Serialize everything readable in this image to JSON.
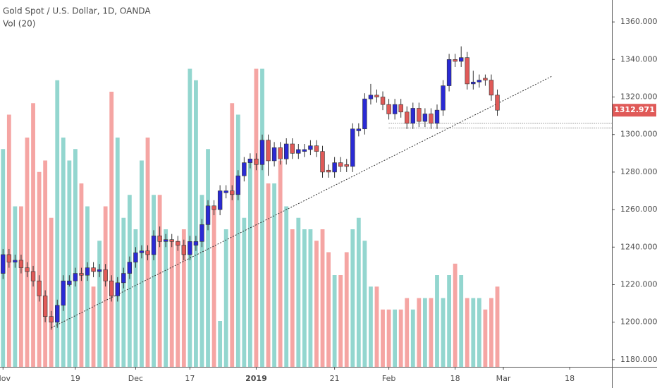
{
  "chart_data": {
    "type": "candlestick",
    "title": "Gold Spot / U.S. Dollar, 1D, OANDA",
    "subtitle": "Vol (20)",
    "up_color": "#2a2ad4",
    "down_color": "#e05a58",
    "volume_up_color": "#93d6cf",
    "volume_down_color": "#f5a5a3",
    "open": [
      1226,
      1236,
      1232,
      1233,
      1229,
      1227,
      1222,
      1214,
      1203,
      1200,
      1209,
      1220,
      1222,
      1226,
      1225,
      1229,
      1227,
      1228,
      1222,
      1214,
      1221,
      1226,
      1232,
      1237,
      1238,
      1236,
      1246,
      1243,
      1244,
      1243,
      1241,
      1236,
      1241,
      1243,
      1252,
      1262,
      1260,
      1269,
      1270,
      1268,
      1278,
      1285,
      1287,
      1284,
      1297,
      1286,
      1293,
      1287,
      1295,
      1290,
      1291,
      1292,
      1294,
      1291,
      1281,
      1280,
      1285,
      1284,
      1283,
      1302,
      1303,
      1319,
      1321,
      1320,
      1316,
      1311,
      1316,
      1312,
      1306,
      1314,
      1307,
      1311,
      1306,
      1313,
      1326,
      1340,
      1339,
      1341,
      1327,
      1328,
      1330,
      1329,
      1321
    ],
    "high": [
      1239,
      1239,
      1236,
      1236,
      1232,
      1230,
      1225,
      1217,
      1206,
      1212,
      1225,
      1225,
      1229,
      1229,
      1232,
      1232,
      1231,
      1231,
      1225,
      1224,
      1229,
      1235,
      1240,
      1241,
      1241,
      1249,
      1251,
      1247,
      1247,
      1246,
      1244,
      1246,
      1246,
      1255,
      1265,
      1265,
      1273,
      1273,
      1273,
      1281,
      1288,
      1290,
      1290,
      1300,
      1300,
      1296,
      1296,
      1298,
      1298,
      1295,
      1295,
      1297,
      1297,
      1294,
      1284,
      1288,
      1288,
      1287,
      1306,
      1306,
      1322,
      1327,
      1324,
      1323,
      1319,
      1319,
      1319,
      1315,
      1317,
      1317,
      1314,
      1314,
      1316,
      1329,
      1343,
      1343,
      1347,
      1344,
      1334,
      1332,
      1332,
      1332,
      1324
    ],
    "low": [
      1223,
      1229,
      1229,
      1226,
      1224,
      1219,
      1211,
      1200,
      1196,
      1197,
      1206,
      1219,
      1219,
      1222,
      1222,
      1224,
      1224,
      1219,
      1211,
      1211,
      1218,
      1223,
      1229,
      1234,
      1233,
      1233,
      1240,
      1240,
      1240,
      1238,
      1233,
      1233,
      1238,
      1240,
      1249,
      1257,
      1257,
      1266,
      1265,
      1265,
      1275,
      1282,
      1281,
      1281,
      1278,
      1283,
      1284,
      1284,
      1287,
      1287,
      1288,
      1289,
      1288,
      1277,
      1277,
      1277,
      1280,
      1280,
      1280,
      1299,
      1300,
      1316,
      1317,
      1313,
      1308,
      1308,
      1309,
      1303,
      1303,
      1304,
      1304,
      1303,
      1303,
      1310,
      1323,
      1336,
      1336,
      1324,
      1324,
      1325,
      1326,
      1318,
      1310
    ],
    "close": [
      1236,
      1232,
      1233,
      1229,
      1227,
      1222,
      1214,
      1203,
      1200,
      1209,
      1222,
      1222,
      1226,
      1225,
      1229,
      1227,
      1228,
      1222,
      1214,
      1221,
      1226,
      1232,
      1237,
      1238,
      1236,
      1246,
      1243,
      1244,
      1243,
      1241,
      1236,
      1243,
      1243,
      1252,
      1262,
      1260,
      1270,
      1270,
      1268,
      1278,
      1285,
      1287,
      1284,
      1297,
      1286,
      1293,
      1287,
      1295,
      1290,
      1292,
      1292,
      1294,
      1291,
      1280,
      1280,
      1285,
      1283,
      1283,
      1303,
      1303,
      1319,
      1321,
      1320,
      1316,
      1311,
      1316,
      1312,
      1306,
      1314,
      1307,
      1311,
      1306,
      1313,
      1326,
      1340,
      1339,
      1341,
      1327,
      1328,
      1329,
      1329,
      1321,
      1312.971
    ],
    "volume": [
      95,
      110,
      70,
      70,
      100,
      115,
      85,
      90,
      65,
      125,
      100,
      90,
      95,
      80,
      70,
      35,
      55,
      70,
      120,
      100,
      65,
      75,
      60,
      90,
      100,
      75,
      75,
      60,
      55,
      55,
      60,
      130,
      125,
      75,
      95,
      70,
      20,
      60,
      115,
      110,
      65,
      90,
      130,
      130,
      80,
      80,
      90,
      70,
      60,
      65,
      60,
      60,
      55,
      60,
      50,
      40,
      40,
      50,
      60,
      65,
      55,
      35,
      35,
      25,
      25,
      25,
      25,
      30,
      25,
      30,
      30,
      30,
      40,
      30,
      40,
      45,
      40,
      30,
      30,
      30,
      25,
      30,
      35
    ],
    "volume_lim": [
      0,
      160
    ],
    "xlim": [
      -0.5,
      101
    ],
    "xticks": [
      {
        "value": 0,
        "label": "Nov"
      },
      {
        "value": 12,
        "label": "19"
      },
      {
        "value": 22,
        "label": "Dec"
      },
      {
        "value": 31,
        "label": "17"
      },
      {
        "value": 42,
        "label": "2019"
      },
      {
        "value": 55,
        "label": "21"
      },
      {
        "value": 64,
        "label": "Feb"
      },
      {
        "value": 75,
        "label": "18"
      },
      {
        "value": 83,
        "label": "Mar"
      },
      {
        "value": 94,
        "label": "18"
      }
    ],
    "ylim": [
      1176.2,
      1371.7
    ],
    "yticks": [
      {
        "value": 1180,
        "label": "1180.000"
      },
      {
        "value": 1200,
        "label": "1200.000"
      },
      {
        "value": 1220,
        "label": "1220.000"
      },
      {
        "value": 1240,
        "label": "1240.000"
      },
      {
        "value": 1260,
        "label": "1260.000"
      },
      {
        "value": 1280,
        "label": "1280.000"
      },
      {
        "value": 1300,
        "label": "1300.000"
      },
      {
        "value": 1320,
        "label": "1320.000"
      },
      {
        "value": 1340,
        "label": "1340.000"
      },
      {
        "value": 1360,
        "label": "1360.000"
      }
    ],
    "trendline": {
      "x": [
        8,
        91
      ],
      "y": [
        1197,
        1331
      ]
    },
    "levels": {
      "x_start": 64,
      "y": [
        1306,
        1303.5
      ]
    }
  }
}
